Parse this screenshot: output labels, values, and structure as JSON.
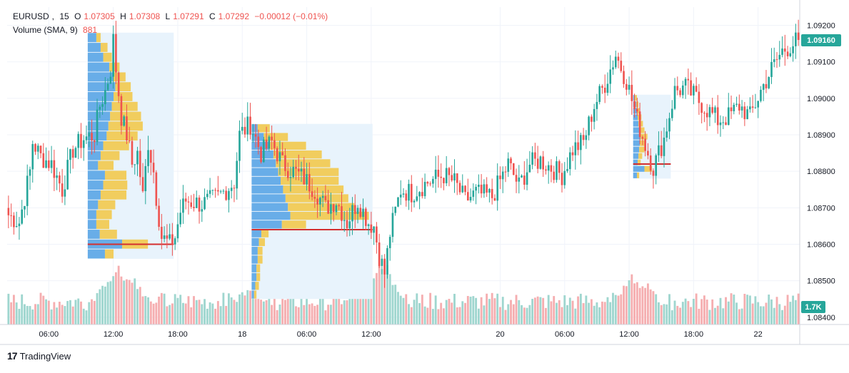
{
  "header": {
    "symbol": "EURUSD",
    "interval": "15",
    "open_label": "O",
    "open": "1.07305",
    "high_label": "H",
    "high": "1.07308",
    "low_label": "L",
    "low": "1.07291",
    "close_label": "C",
    "close": "1.07292",
    "change": "−0.00012 (−0.01%)",
    "volume_label": "Volume (SMA, 9)",
    "volume_value": "881"
  },
  "brand": {
    "name": "TradingView"
  },
  "colors": {
    "up": "#26a69a",
    "down": "#ef5350",
    "vol_up": "#9fd6cf",
    "vol_down": "#f5aeb0",
    "vp_blue": "#5aa5e6",
    "vp_yellow": "#f2c94c",
    "vp_area": "#e8f3fc",
    "poc": "#d32f2f",
    "grid": "#f0f3fa",
    "axis_text": "#131722"
  },
  "chart_data": {
    "type": "candlestick",
    "title": "EURUSD, 15",
    "ylim": [
      1.0838,
      1.0925
    ],
    "y_ticks": [
      "1.09200",
      "1.09100",
      "1.09000",
      "1.08900",
      "1.08800",
      "1.08700",
      "1.08600",
      "1.08500",
      "1.08400"
    ],
    "x_ticks": [
      {
        "label": "06:00",
        "bar": 15
      },
      {
        "label": "12:00",
        "bar": 39
      },
      {
        "label": "18:00",
        "bar": 63
      },
      {
        "label": "18",
        "bar": 87
      },
      {
        "label": "06:00",
        "bar": 111
      },
      {
        "label": "12:00",
        "bar": 135
      },
      {
        "label": "20",
        "bar": 183
      },
      {
        "label": "06:00",
        "bar": 207
      },
      {
        "label": "12:00",
        "bar": 231
      },
      {
        "label": "18:00",
        "bar": 255
      },
      {
        "label": "22",
        "bar": 279
      }
    ],
    "bar_count": 295,
    "price_anchors": [
      [
        0,
        1.0868
      ],
      [
        4,
        1.0866
      ],
      [
        8,
        1.088
      ],
      [
        9,
        1.0888
      ],
      [
        12,
        1.0884
      ],
      [
        16,
        1.0882
      ],
      [
        20,
        1.0875
      ],
      [
        24,
        1.0886
      ],
      [
        28,
        1.0889
      ],
      [
        32,
        1.089
      ],
      [
        34,
        1.0898
      ],
      [
        36,
        1.0902
      ],
      [
        38,
        1.0908
      ],
      [
        39,
        1.0916
      ],
      [
        40,
        1.0908
      ],
      [
        42,
        1.0895
      ],
      [
        44,
        1.089
      ],
      [
        46,
        1.0882
      ],
      [
        48,
        1.0885
      ],
      [
        50,
        1.0873
      ],
      [
        52,
        1.0888
      ],
      [
        54,
        1.088
      ],
      [
        55,
        1.0873
      ],
      [
        57,
        1.0862
      ],
      [
        60,
        1.086
      ],
      [
        62,
        1.0862
      ],
      [
        64,
        1.0869
      ],
      [
        66,
        1.0872
      ],
      [
        72,
        1.0871
      ],
      [
        78,
        1.0873
      ],
      [
        84,
        1.0877
      ],
      [
        86,
        1.089
      ],
      [
        90,
        1.0893
      ],
      [
        94,
        1.0885
      ],
      [
        98,
        1.0888
      ],
      [
        102,
        1.0882
      ],
      [
        106,
        1.088
      ],
      [
        110,
        1.0878
      ],
      [
        114,
        1.0875
      ],
      [
        118,
        1.087
      ],
      [
        122,
        1.0872
      ],
      [
        126,
        1.0866
      ],
      [
        130,
        1.0872
      ],
      [
        134,
        1.0866
      ],
      [
        136,
        1.0865
      ],
      [
        138,
        1.0857
      ],
      [
        140,
        1.0852
      ],
      [
        142,
        1.0863
      ],
      [
        146,
        1.0875
      ],
      [
        150,
        1.0874
      ],
      [
        156,
        1.0877
      ],
      [
        162,
        1.0879
      ],
      [
        166,
        1.0877
      ],
      [
        170,
        1.0872
      ],
      [
        174,
        1.0874
      ],
      [
        180,
        1.0873
      ],
      [
        186,
        1.0882
      ],
      [
        190,
        1.0876
      ],
      [
        194,
        1.0882
      ],
      [
        198,
        1.0883
      ],
      [
        202,
        1.0881
      ],
      [
        206,
        1.0879
      ],
      [
        210,
        1.0886
      ],
      [
        214,
        1.0888
      ],
      [
        218,
        1.0898
      ],
      [
        222,
        1.0904
      ],
      [
        226,
        1.0912
      ],
      [
        230,
        1.0905
      ],
      [
        234,
        1.0894
      ],
      [
        238,
        1.0885
      ],
      [
        240,
        1.0881
      ],
      [
        244,
        1.0889
      ],
      [
        248,
        1.0902
      ],
      [
        252,
        1.0903
      ],
      [
        256,
        1.09
      ],
      [
        260,
        1.0897
      ],
      [
        264,
        1.0894
      ],
      [
        268,
        1.0895
      ],
      [
        272,
        1.0898
      ],
      [
        276,
        1.0895
      ],
      [
        280,
        1.0902
      ],
      [
        284,
        1.0908
      ],
      [
        288,
        1.0913
      ],
      [
        292,
        1.0915
      ],
      [
        294,
        1.0916
      ]
    ],
    "last_price": "1.09160",
    "volume_last": "1.7K",
    "volume_peak_bars": [
      [
        40,
        1.0
      ],
      [
        42,
        0.95
      ],
      [
        46,
        0.8
      ],
      [
        90,
        0.7
      ],
      [
        134,
        0.85
      ],
      [
        138,
        0.95
      ],
      [
        140,
        1.0
      ],
      [
        142,
        0.7
      ],
      [
        232,
        0.85
      ],
      [
        236,
        0.75
      ]
    ],
    "volume_profiles": [
      {
        "from_bar": 30,
        "to_bar": 61,
        "price_top": 1.0918,
        "price_bottom": 1.0856,
        "poc": 1.086,
        "rows": [
          [
            0.1,
            0.05
          ],
          [
            0.15,
            0.08
          ],
          [
            0.18,
            0.1
          ],
          [
            0.25,
            0.12
          ],
          [
            0.3,
            0.14
          ],
          [
            0.32,
            0.18
          ],
          [
            0.3,
            0.22
          ],
          [
            0.28,
            0.3
          ],
          [
            0.26,
            0.36
          ],
          [
            0.24,
            0.4
          ],
          [
            0.22,
            0.36
          ],
          [
            0.18,
            0.3
          ],
          [
            0.15,
            0.22
          ],
          [
            0.12,
            0.18
          ],
          [
            0.2,
            0.25
          ],
          [
            0.18,
            0.28
          ],
          [
            0.15,
            0.3
          ],
          [
            0.12,
            0.2
          ],
          [
            0.1,
            0.18
          ],
          [
            0.1,
            0.15
          ],
          [
            0.14,
            0.2
          ],
          [
            0.4,
            0.3
          ],
          [
            0.2,
            0.1
          ]
        ]
      },
      {
        "from_bar": 91,
        "to_bar": 135,
        "price_top": 1.0893,
        "price_bottom": 1.0845,
        "poc": 1.0864,
        "rows": [
          [
            0.05,
            0.1
          ],
          [
            0.1,
            0.2
          ],
          [
            0.15,
            0.3
          ],
          [
            0.18,
            0.4
          ],
          [
            0.2,
            0.45
          ],
          [
            0.22,
            0.5
          ],
          [
            0.24,
            0.48
          ],
          [
            0.26,
            0.5
          ],
          [
            0.28,
            0.52
          ],
          [
            0.3,
            0.55
          ],
          [
            0.32,
            0.65
          ],
          [
            0.25,
            0.2
          ],
          [
            0.08,
            0.06
          ],
          [
            0.06,
            0.05
          ],
          [
            0.05,
            0.04
          ],
          [
            0.05,
            0.04
          ],
          [
            0.04,
            0.03
          ],
          [
            0.04,
            0.03
          ],
          [
            0.03,
            0.03
          ],
          [
            0.02,
            0.02
          ]
        ]
      },
      {
        "from_bar": 233,
        "to_bar": 246,
        "price_top": 1.0901,
        "price_bottom": 1.0878,
        "poc": 1.0882,
        "rows": [
          [
            0.05,
            0.05
          ],
          [
            0.08,
            0.06
          ],
          [
            0.1,
            0.08
          ],
          [
            0.12,
            0.1
          ],
          [
            0.14,
            0.12
          ],
          [
            0.16,
            0.14
          ],
          [
            0.2,
            0.18
          ],
          [
            0.18,
            0.16
          ],
          [
            0.16,
            0.14
          ],
          [
            0.14,
            0.1
          ],
          [
            0.12,
            0.08
          ],
          [
            0.3,
            0.2
          ],
          [
            0.1,
            0.06
          ]
        ]
      }
    ]
  }
}
